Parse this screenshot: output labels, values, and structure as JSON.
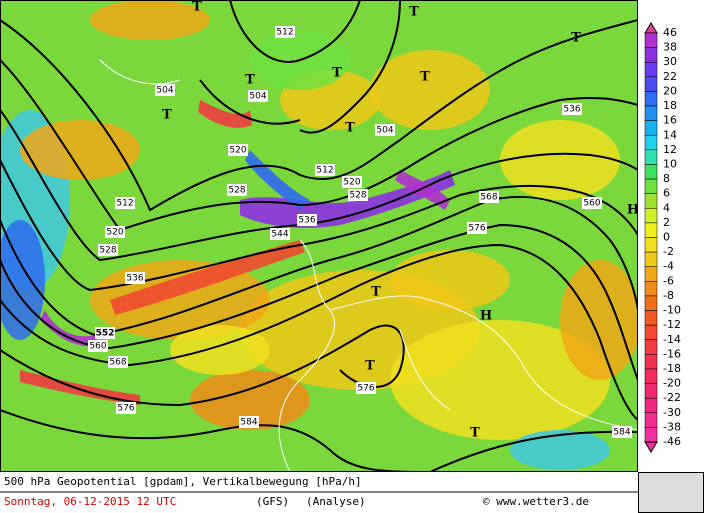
{
  "map": {
    "contour_labels": [
      "512",
      "504",
      "504",
      "504",
      "512",
      "520",
      "520",
      "528",
      "528",
      "536",
      "544",
      "536",
      "552",
      "560",
      "568",
      "576",
      "584",
      "512",
      "520",
      "528",
      "568",
      "576",
      "560",
      "536",
      "576",
      "584"
    ],
    "markers": [
      "T",
      "T",
      "T",
      "T",
      "T",
      "T",
      "T",
      "T",
      "H",
      "T",
      "H",
      "T",
      "T"
    ]
  },
  "legend": {
    "labels": [
      "46",
      "38",
      "30",
      "22",
      "20",
      "18",
      "16",
      "14",
      "12",
      "10",
      "8",
      "6",
      "4",
      "2",
      "0",
      "-2",
      "-4",
      "-6",
      "-8",
      "-10",
      "-12",
      "-14",
      "-16",
      "-18",
      "-20",
      "-22",
      "-30",
      "-38",
      "-46"
    ],
    "colors": [
      "#e0409c",
      "#b030d0",
      "#8c30e0",
      "#6a3cf0",
      "#4a4cf0",
      "#2f6cf0",
      "#1f8ef0",
      "#1ab0f0",
      "#20d0e8",
      "#30e0b0",
      "#40e060",
      "#70e040",
      "#a0e030",
      "#d0f028",
      "#f0f020",
      "#f0e020",
      "#f0c818",
      "#f0a818",
      "#f08c18",
      "#f07018",
      "#f05a20",
      "#f04a30",
      "#f03c40",
      "#f03050",
      "#f02c60",
      "#f02870",
      "#f02880",
      "#f02c90",
      "#f030a0"
    ]
  },
  "footer": {
    "line1": "500 hPa Geopotential [gpdam], Vertikalbewegung [hPa/h]",
    "date": "Sonntag, 06-12-2015  12 UTC",
    "model": "(GFS)",
    "run": "(Analyse)",
    "source": "© www.wetter3.de"
  }
}
